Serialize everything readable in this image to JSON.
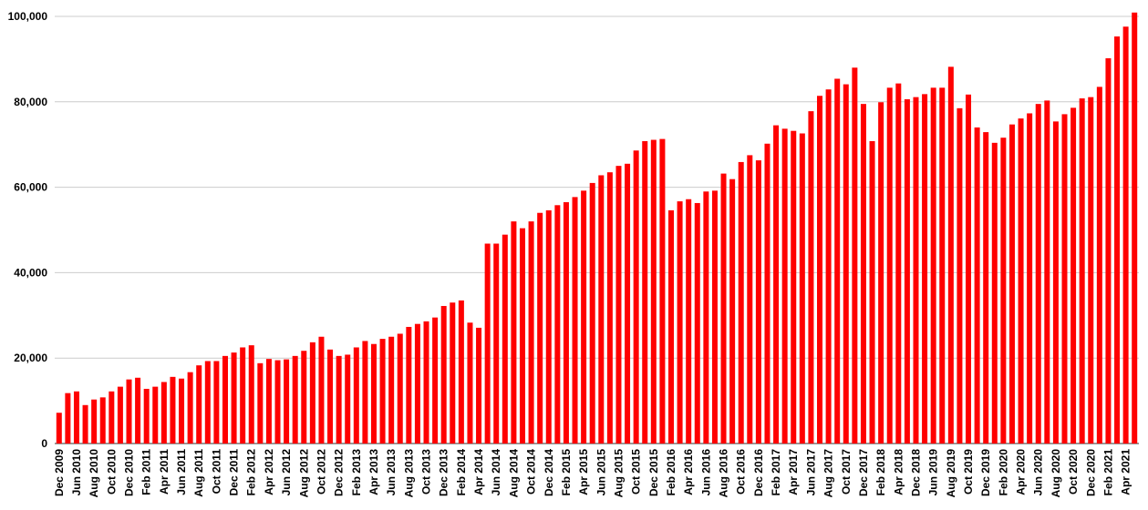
{
  "chart_data": {
    "type": "bar",
    "categories": [
      "Dec 2009",
      null,
      "Jun 2010",
      null,
      "Aug 2010",
      null,
      "Oct 2010",
      null,
      "Dec 2010",
      null,
      "Feb 2011",
      null,
      "Apr 2011",
      null,
      "Jun 2011",
      null,
      "Aug 2011",
      null,
      "Oct 2011",
      null,
      "Dec 2011",
      null,
      "Feb 2012",
      null,
      "Apr 2012",
      null,
      "Jun 2012",
      null,
      "Aug 2012",
      null,
      "Oct 2012",
      null,
      "Dec 2012",
      null,
      "Feb 2013",
      null,
      "Apr 2013",
      null,
      "Jun 2013",
      null,
      "Aug 2013",
      null,
      "Oct 2013",
      null,
      "Dec 2013",
      null,
      "Feb 2014",
      null,
      "Apr 2014",
      null,
      "Jun 2014",
      null,
      "Aug 2014",
      null,
      "Oct 2014",
      null,
      "Dec 2014",
      null,
      "Feb 2015",
      null,
      "Apr 2015",
      null,
      "Jun 2015",
      null,
      "Aug 2015",
      null,
      "Oct 2015",
      null,
      "Dec 2015",
      null,
      "Feb 2016",
      null,
      "Apr 2016",
      null,
      "Jun 2016",
      null,
      "Aug 2016",
      null,
      "Oct 2016",
      null,
      "Dec 2016",
      null,
      "Feb 2017",
      null,
      "Apr 2017",
      null,
      "Jun 2017",
      null,
      "Aug 2017",
      null,
      "Oct 2017",
      null,
      "Dec 2017",
      null,
      "Feb 2018",
      null,
      "Apr 2018",
      null,
      "Dec 2018",
      null,
      "Jun 2019",
      null,
      "Aug 2019",
      null,
      "Oct 2019",
      null,
      "Dec 2019",
      null,
      "Feb 2020",
      null,
      "Apr 2020",
      null,
      "Jun 2020",
      null,
      "Aug 2020",
      null,
      "Oct 2020",
      null,
      "Dec 2020",
      null,
      "Feb 2021",
      null,
      "Apr 2021",
      null
    ],
    "values": [
      7200,
      11800,
      12200,
      9000,
      10300,
      10800,
      12200,
      13300,
      15000,
      15400,
      12800,
      13300,
      14400,
      15600,
      15200,
      16700,
      18300,
      19300,
      19300,
      20500,
      21300,
      22500,
      23000,
      18800,
      19800,
      19500,
      19700,
      20500,
      21700,
      23700,
      25000,
      22000,
      20500,
      20800,
      22500,
      24000,
      23300,
      24500,
      25000,
      25700,
      27300,
      28000,
      28600,
      29500,
      32200,
      33000,
      33500,
      28300,
      27100,
      46800,
      46800,
      48900,
      52000,
      50400,
      52000,
      54000,
      54600,
      55800,
      56500,
      57700,
      59200,
      61000,
      62800,
      63500,
      65000,
      65500,
      68600,
      70800,
      71100,
      71300,
      54600,
      56700,
      57200,
      56300,
      59000,
      59200,
      63200,
      61900,
      65900,
      67500,
      66300,
      70200,
      74500,
      73700,
      73200,
      72600,
      77800,
      81400,
      82900,
      85400,
      84100,
      88000,
      79500,
      70800,
      79900,
      83300,
      84300,
      80600,
      81100,
      81800,
      83300,
      83300,
      88200,
      78500,
      81700,
      74000,
      72900,
      70400,
      71600,
      74700,
      76100,
      77300,
      79500,
      80300,
      75400,
      77100,
      78600,
      80800,
      81100,
      83500,
      90200,
      95300,
      97600,
      100900
    ],
    "color": "#ff0000",
    "ylim": [
      0,
      101000
    ],
    "yticks": [
      0,
      {
        "value": 20000,
        "label": "20,000"
      },
      {
        "value": 40000,
        "label": "40,000"
      },
      {
        "value": 60000,
        "label": "60,000"
      },
      {
        "value": 80000,
        "label": "80,000"
      },
      {
        "value": 100000,
        "label": "100,000"
      }
    ],
    "grid": true
  }
}
